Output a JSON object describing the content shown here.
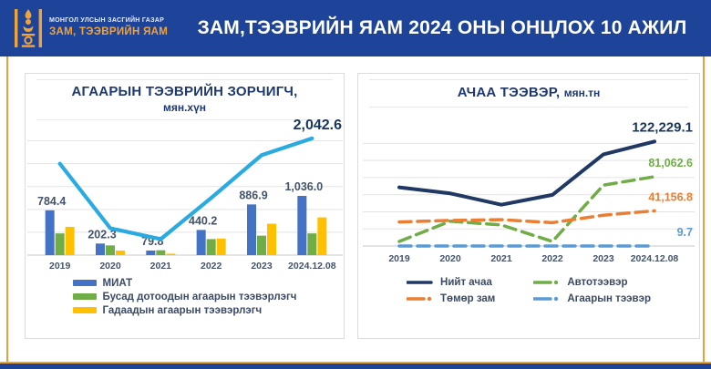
{
  "header": {
    "logo": {
      "org_line1": "МОНГОЛ УЛСЫН ЗАСГИЙН ГАЗАР",
      "org_line2": "ЗАМ, ТЭЭВРИЙН ЯАМ"
    },
    "title": "ЗАМ,ТЭЭВРИЙН ЯАМ 2024 ОНЫ ОНЦЛОХ 10 АЖИЛ"
  },
  "colors": {
    "header_bg": "#1D4499",
    "frame_gold": "#E9A23B",
    "panel_border": "#DCDCDC",
    "title_navy": "#1F3970",
    "value_label_dark": "#44546A",
    "big_label_navy": "#17365D",
    "miat_blue": "#4472C4",
    "domestic_green": "#70AD47",
    "foreign_yellow": "#FFC000",
    "passengers_line_cyan": "#29ABE2",
    "total_freight_navy": "#1F3864",
    "railway_orange": "#ED7D31",
    "auto_green": "#70AD47",
    "air_blue": "#5B9BD5"
  },
  "chart_data": [
    {
      "id": "air-passengers",
      "type": "bar",
      "title": "АГААРЫН ТЭЭВРИЙН ЗОРЧИГЧ,",
      "subtitle": "мян.хүн",
      "categories": [
        "2019",
        "2020",
        "2021",
        "2022",
        "2023",
        "2024.12.08"
      ],
      "series": [
        {
          "name": "МИАТ",
          "kind": "bar",
          "color": "#4472C4",
          "values": [
            784.4,
            202.3,
            79.8,
            440.2,
            886.9,
            1036.0
          ],
          "value_labels": [
            "784.4",
            "202.3",
            "79.8",
            "440.2",
            "886.9",
            "1,036.0"
          ],
          "in_legend": true
        },
        {
          "name": "Бусад дотоодын агаарын тээвэрлэгч",
          "kind": "bar",
          "color": "#70AD47",
          "values": [
            380,
            170,
            85,
            280,
            340,
            380
          ],
          "in_legend": true
        },
        {
          "name": "Гадаадын агаарын тээвэрлэгч",
          "kind": "bar",
          "color": "#FFC000",
          "values": [
            495,
            80,
            25,
            290,
            550,
            660
          ],
          "in_legend": true
        },
        {
          "kind": "line",
          "color": "#29ABE2",
          "values": [
            1600,
            470,
            280,
            1000,
            1750,
            2042.6
          ],
          "end_label": "2,042.6",
          "in_legend": false
        }
      ],
      "ylim": [
        0,
        2200
      ],
      "grid": true,
      "legend_position": "bottom"
    },
    {
      "id": "freight",
      "type": "line",
      "title": "АЧАА ТЭЭВЭР,",
      "subtitle": "мян.тн",
      "categories": [
        "2019",
        "2020",
        "2021",
        "2022",
        "2023",
        "2024.12.08"
      ],
      "series": [
        {
          "name": "Нийт ачаа",
          "color": "#1F3864",
          "style": "solid",
          "values": [
            68600,
            61500,
            48300,
            59800,
            107200,
            122229.1
          ],
          "end_label": "122,229.1",
          "end_label_size": "large"
        },
        {
          "name": "Автотээвэр",
          "color": "#70AD47",
          "style": "dashed",
          "values": [
            5300,
            29000,
            24600,
            5300,
            71200,
            81062.6
          ],
          "end_label": "81,062.6"
        },
        {
          "name": "Төмөр зам",
          "color": "#ED7D31",
          "style": "dashed",
          "values": [
            28100,
            29900,
            30800,
            27300,
            36000,
            41156.8
          ],
          "end_label": "41,156.8"
        },
        {
          "name": "Агаарын тээвэр",
          "color": "#5B9BD5",
          "style": "dashed",
          "values": [
            10,
            9,
            8,
            9,
            9,
            9.7
          ],
          "end_label": "9.7"
        }
      ],
      "ylim": [
        0,
        130000
      ],
      "grid": true,
      "legend_position": "bottom",
      "legend_columns": 2
    }
  ]
}
